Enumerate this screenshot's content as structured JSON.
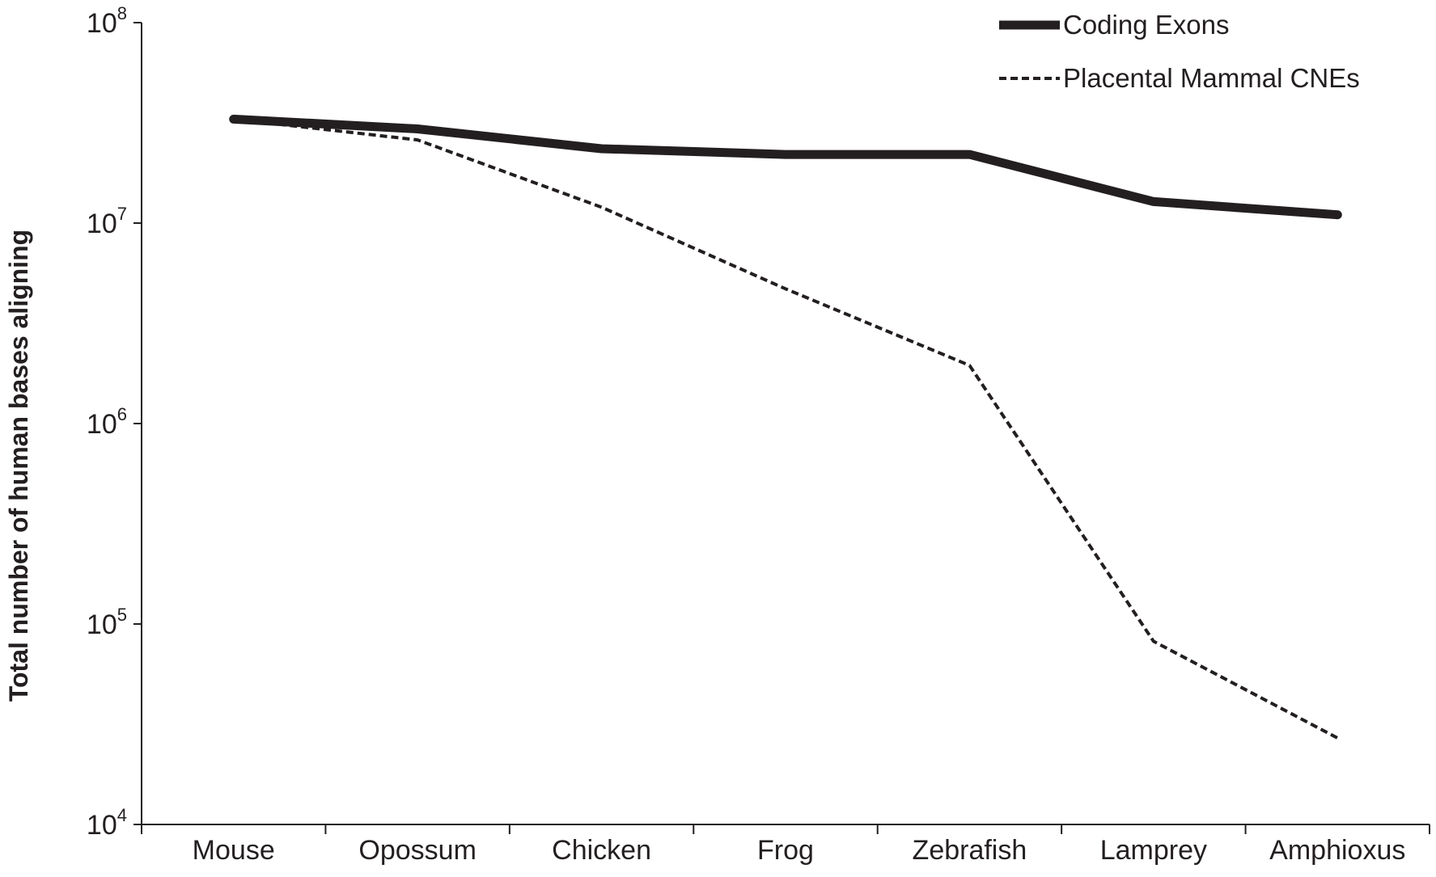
{
  "chart_data": {
    "type": "line",
    "title": "",
    "xlabel": "",
    "ylabel": "Total number of human bases aligning",
    "yscale": "log",
    "ylim": [
      10000,
      100000000
    ],
    "yticks": [
      {
        "value": 10000,
        "base": "10",
        "exp": "4"
      },
      {
        "value": 100000,
        "base": "10",
        "exp": "5"
      },
      {
        "value": 1000000,
        "base": "10",
        "exp": "6"
      },
      {
        "value": 10000000,
        "base": "10",
        "exp": "7"
      },
      {
        "value": 100000000,
        "base": "10",
        "exp": "8"
      }
    ],
    "categories": [
      "Mouse",
      "Opossum",
      "Chicken",
      "Frog",
      "Zebrafish",
      "Lamprey",
      "Amphioxus"
    ],
    "legend_position": "top-right",
    "grid": false,
    "series": [
      {
        "name": "Coding Exons",
        "style": "solid",
        "color": "#231f20",
        "values": [
          33000000,
          29500000,
          23500000,
          22000000,
          22000000,
          12800000,
          11000000
        ]
      },
      {
        "name": "Placental Mammal CNEs",
        "style": "dashed",
        "color": "#231f20",
        "values": [
          33000000,
          26000000,
          12000000,
          4700000,
          1950000,
          82000,
          27000
        ]
      }
    ]
  }
}
